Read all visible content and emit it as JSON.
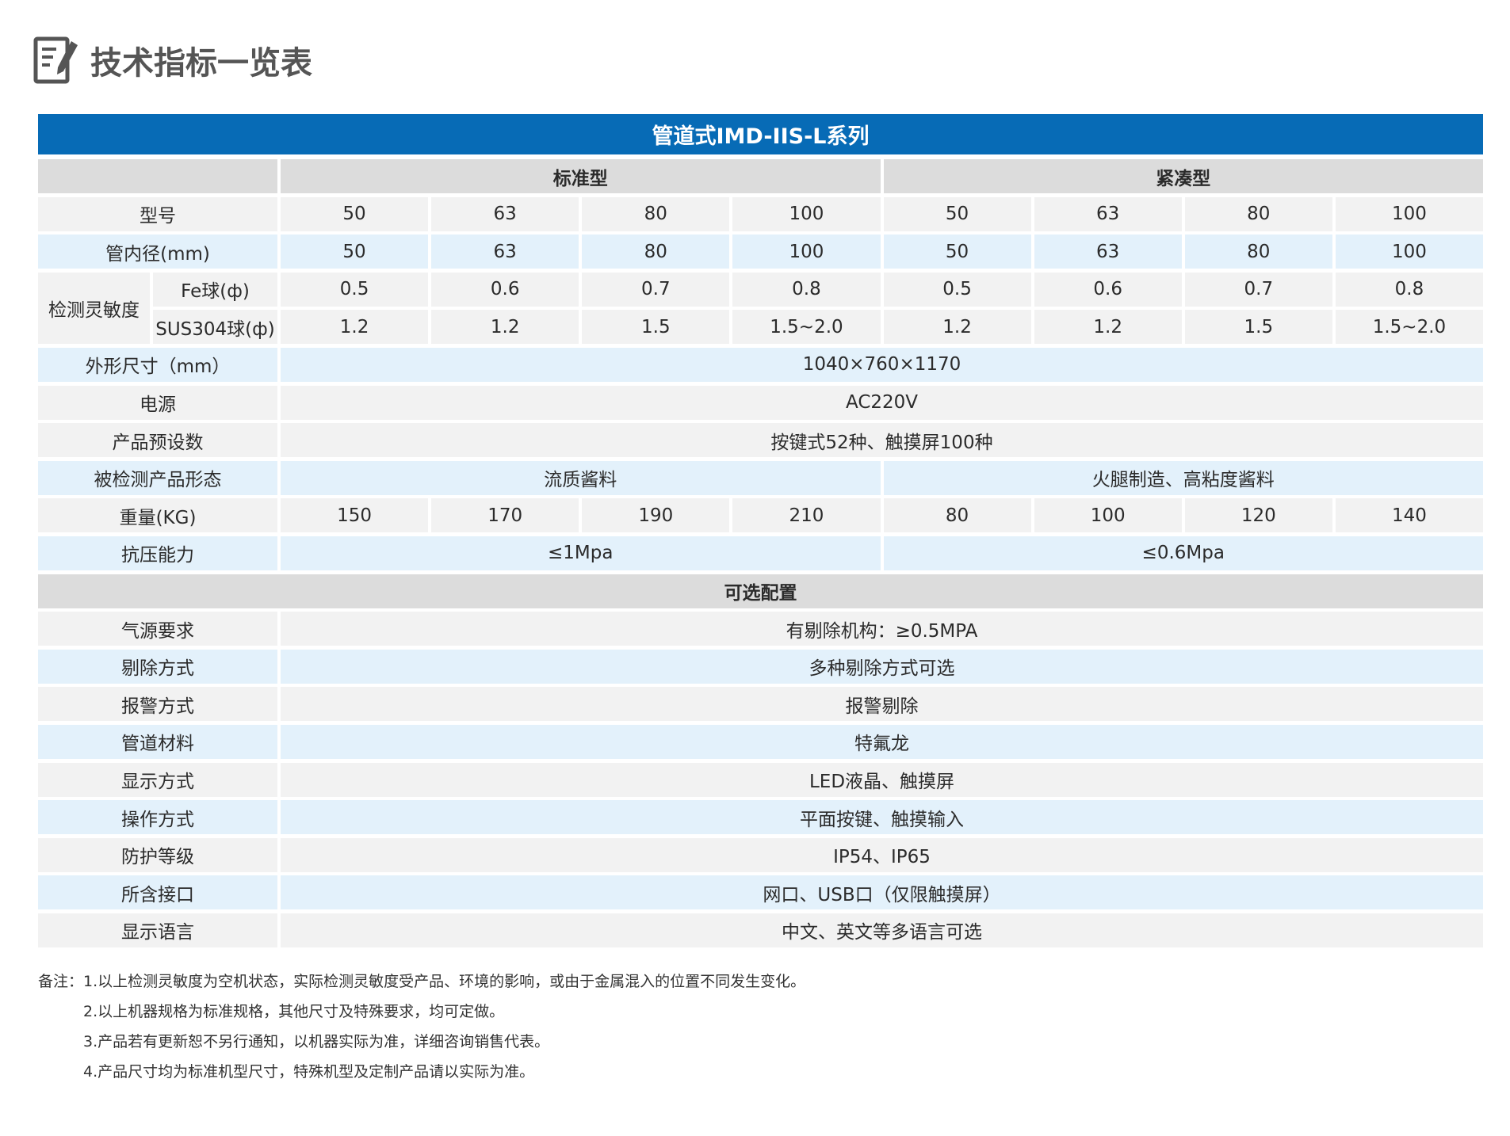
{
  "title": "技术指标一览表",
  "icon": "edit-document-icon",
  "colors": {
    "banner": "#076bb6",
    "row_gray": "#f2f2f2",
    "row_blue": "#e3f1fb",
    "header_gray": "#dcdcdc"
  },
  "table": {
    "series_title": "管道式IMD-IIS-L系列",
    "groups": [
      "标准型",
      "紧凑型"
    ],
    "model": {
      "label": "型号",
      "values": [
        "50",
        "63",
        "80",
        "100",
        "50",
        "63",
        "80",
        "100"
      ]
    },
    "pipe_diameter": {
      "label": "管内径(mm)",
      "values": [
        "50",
        "63",
        "80",
        "100",
        "50",
        "63",
        "80",
        "100"
      ]
    },
    "sensitivity": {
      "label": "检测灵敏度",
      "fe": {
        "label": "Fe球(ф)",
        "values": [
          "0.5",
          "0.6",
          "0.7",
          "0.8",
          "0.5",
          "0.6",
          "0.7",
          "0.8"
        ]
      },
      "sus": {
        "label": "SUS304球(ф)",
        "values": [
          "1.2",
          "1.2",
          "1.5",
          "1.5~2.0",
          "1.2",
          "1.2",
          "1.5",
          "1.5~2.0"
        ]
      }
    },
    "dimensions": {
      "label": "外形尺寸（mm）",
      "value": "1040×760×1170"
    },
    "power": {
      "label": "电源",
      "value": "AC220V"
    },
    "presets": {
      "label": "产品预设数",
      "value": "按键式52种、触摸屏100种"
    },
    "product_form": {
      "label": "被检测产品形态",
      "values": [
        "流质酱料",
        "火腿制造、高粘度酱料"
      ]
    },
    "weight": {
      "label": "重量(KG)",
      "values": [
        "150",
        "170",
        "190",
        "210",
        "80",
        "100",
        "120",
        "140"
      ]
    },
    "pressure": {
      "label": "抗压能力",
      "values": [
        "≤1Mpa",
        "≤0.6Mpa"
      ]
    },
    "optional_title": "可选配置",
    "options": [
      {
        "label": "气源要求",
        "value": "有剔除机构：≥0.5MPA"
      },
      {
        "label": "剔除方式",
        "value": "多种剔除方式可选"
      },
      {
        "label": "报警方式",
        "value": "报警剔除"
      },
      {
        "label": "管道材料",
        "value": "特氟龙"
      },
      {
        "label": "显示方式",
        "value": "LED液晶、触摸屏"
      },
      {
        "label": "操作方式",
        "value": "平面按键、触摸输入"
      },
      {
        "label": "防护等级",
        "value": "IP54、IP65"
      },
      {
        "label": "所含接口",
        "value": "网口、USB口（仅限触摸屏）"
      },
      {
        "label": "显示语言",
        "value": "中文、英文等多语言可选"
      }
    ]
  },
  "notes": [
    "备注：1.以上检测灵敏度为空机状态，实际检测灵敏度受产品、环境的影响，或由于金属混入的位置不同发生变化。",
    "2.以上机器规格为标准规格，其他尺寸及特殊要求，均可定做。",
    "3.产品若有更新恕不另行通知，以机器实际为准，详细咨询销售代表。",
    "4.产品尺寸均为标准机型尺寸，特殊机型及定制产品请以实际为准。"
  ]
}
